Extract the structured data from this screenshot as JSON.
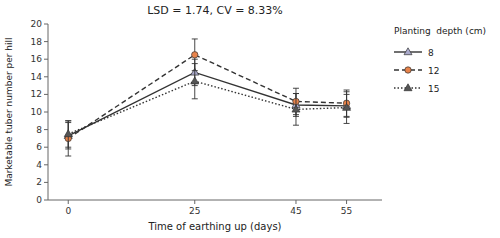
{
  "chart_data": {
    "type": "line",
    "title": "LSD = 1.74, CV = 8.33%",
    "x_label": "Time of earthing up (days)",
    "y_label": "Marketable tuber number per hill",
    "x": [
      0,
      25,
      45,
      55
    ],
    "xlim": [
      -4,
      62
    ],
    "xticks": [
      0,
      25,
      45,
      55
    ],
    "ylim": [
      0,
      20
    ],
    "yticks": [
      0,
      2,
      4,
      6,
      8,
      10,
      12,
      14,
      16,
      18,
      20
    ],
    "grid": false,
    "legend": "right",
    "legend_title": "Planting  depth (cm)",
    "color": "#333333",
    "series": [
      {
        "name": "8",
        "values": [
          7.3,
          14.5,
          10.8,
          10.7
        ],
        "errors": [
          1.5,
          1.5,
          1.3,
          1.3
        ],
        "line_style": "solid",
        "marker": "triangle",
        "color": "#aaaacc"
      },
      {
        "name": "12",
        "values": [
          7.0,
          16.5,
          11.2,
          11.0
        ],
        "errors": [
          2.0,
          1.8,
          1.5,
          1.5
        ],
        "line_style": "dashed",
        "marker": "circle",
        "color": "#e8834a"
      },
      {
        "name": "15",
        "values": [
          7.5,
          13.5,
          10.3,
          10.5
        ],
        "errors": [
          1.5,
          2.0,
          1.8,
          1.8
        ],
        "line_style": "dotted",
        "marker": "triangle",
        "color": "#555555"
      }
    ]
  }
}
